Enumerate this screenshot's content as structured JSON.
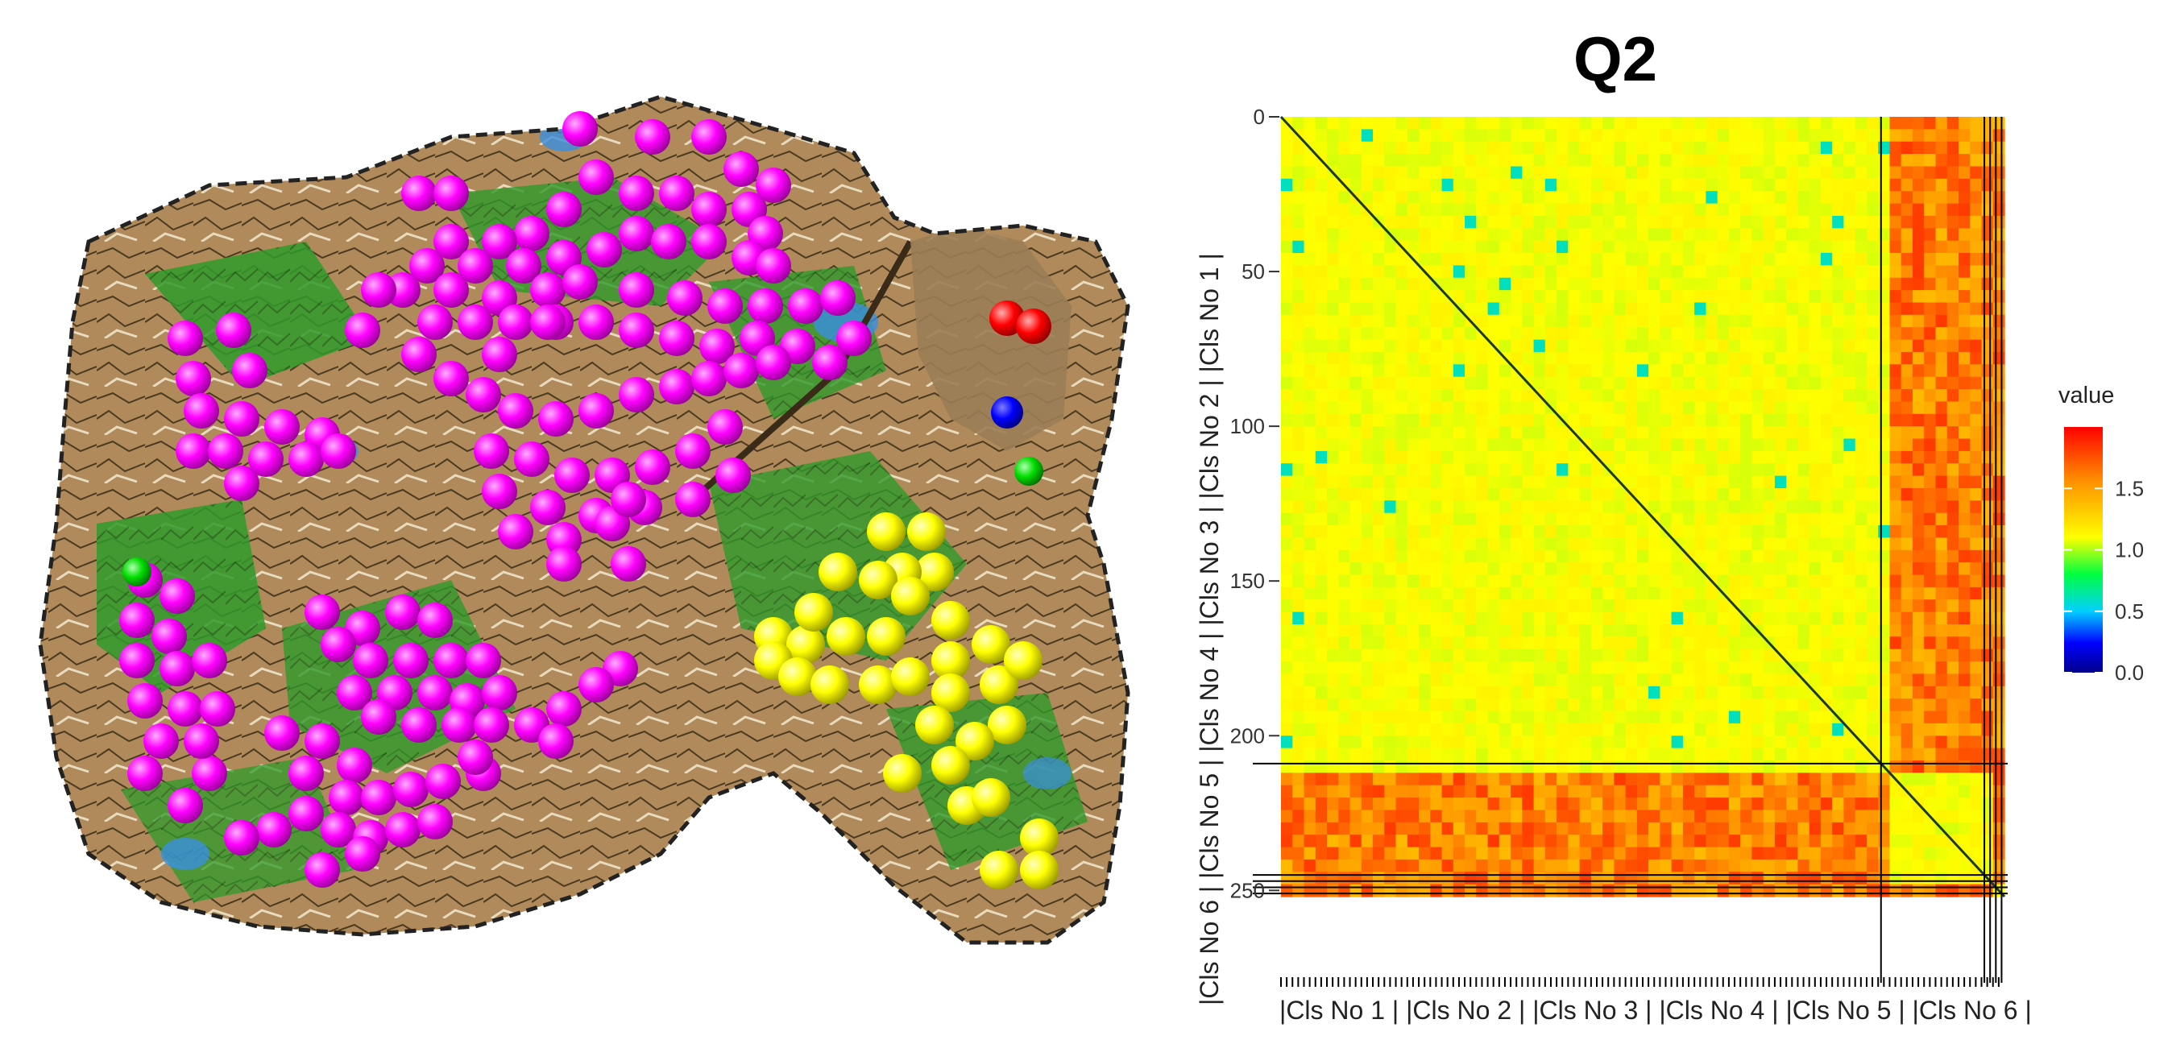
{
  "chart_data": [
    {
      "type": "scatter",
      "description_kind": "topographic-map-with-clustered-points",
      "title": "",
      "point_groups": [
        {
          "color": "#ff00ff",
          "label": "magenta cluster"
        },
        {
          "color": "#ffff00",
          "label": "yellow cluster"
        },
        {
          "color": "#ff0000",
          "label": "red cluster"
        },
        {
          "color": "#0000ff",
          "label": "blue cluster"
        },
        {
          "color": "#00cc00",
          "label": "green cluster"
        }
      ]
    },
    {
      "type": "heatmap",
      "title": "Q2",
      "x_range": [
        0,
        252
      ],
      "y_range": [
        0,
        252
      ],
      "y_ticks": [
        0,
        50,
        100,
        150,
        200,
        250
      ],
      "y_tick_labels": [
        "0",
        "50",
        "100",
        "150",
        "200",
        "250"
      ],
      "cluster_boundaries": [
        209,
        245,
        247,
        249,
        251
      ],
      "x_class_labels": "|Cls No 1 | |Cls No 2 | |Cls No 3 | |Cls No 4 | |Cls No 5 | |Cls No 6 |",
      "y_class_labels": "|Cls No 6 | |Cls No 5 | |Cls No 4 | |Cls No 3 | |Cls No 2 | |Cls No 1 |",
      "within_cluster_value": 1.1,
      "between_cluster_value": 1.6,
      "diagonal_value": 0.0,
      "legend": {
        "title": "value",
        "ticks": [
          1.5,
          1.0,
          0.5,
          0.0
        ],
        "tick_labels": [
          "1.5",
          "1.0",
          "0.5",
          "0.0"
        ],
        "range": [
          0,
          2
        ],
        "colors": [
          "#00008b",
          "#0000ff",
          "#00ffff",
          "#00ff00",
          "#ffff00",
          "#ff8000",
          "#ff0000"
        ]
      }
    }
  ]
}
